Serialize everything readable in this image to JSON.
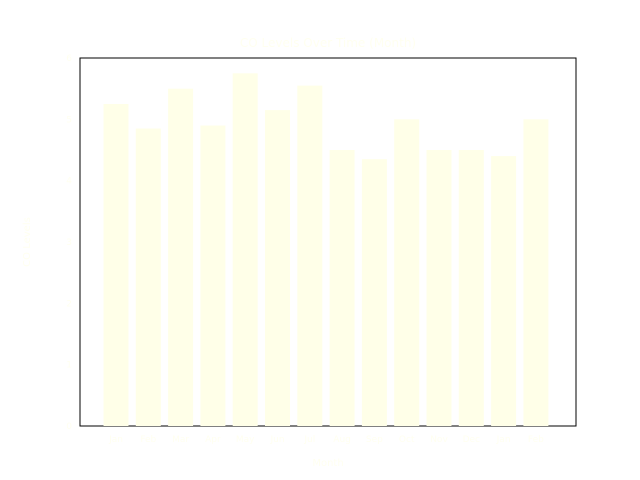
{
  "chart_data": {
    "type": "bar",
    "title": "CO Levels Over Time (Month)",
    "xlabel": "Month",
    "ylabel": "CO Levels",
    "categories": [
      "Jan",
      "Feb",
      "Mar",
      "Apr",
      "May",
      "Jun",
      "Jul",
      "Aug",
      "Sep",
      "Oct",
      "Nov",
      "Dec",
      "Jan",
      "Feb"
    ],
    "values": [
      5.25,
      4.85,
      5.5,
      4.9,
      5.75,
      5.15,
      5.55,
      4.5,
      4.35,
      5.0,
      4.5,
      4.5,
      4.4,
      5.0
    ],
    "yticks": [
      "0",
      "1",
      "2",
      "3",
      "4",
      "5",
      "6"
    ],
    "ylim": [
      0,
      6
    ],
    "bar_color": "#ffffe8",
    "text_color": "#fffff0",
    "grid": false,
    "legend": "none"
  }
}
